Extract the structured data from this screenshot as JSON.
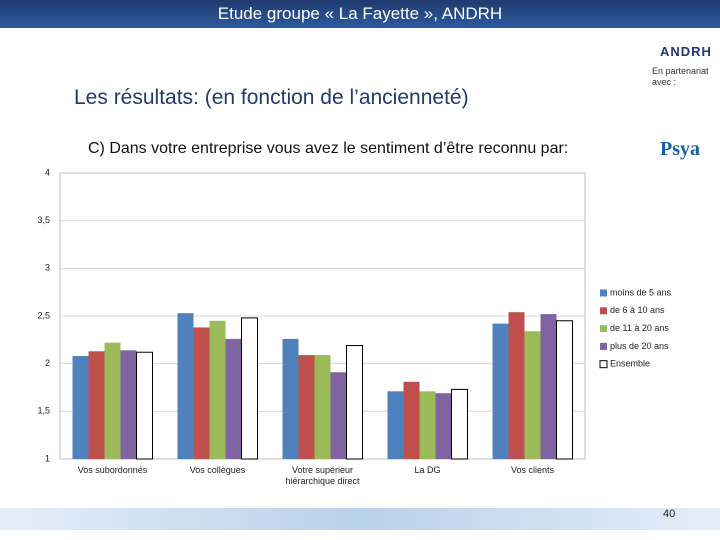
{
  "header": {
    "title": "Etude groupe « La Fayette », ANDRH"
  },
  "logos": [
    "ANDRH",
    "Psya"
  ],
  "partner_note": "En partenariat avec :",
  "heading": "Les résultats: (en fonction de l’ancienneté)",
  "page_number": "40",
  "chart_data": {
    "type": "bar",
    "title": "C) Dans votre entreprise vous avez le sentiment d’être reconnu par:",
    "categories": [
      "Vos subordonnés",
      "Vos collègues",
      "Votre supérieur hiérarchique direct",
      "La DG",
      "Vos clients"
    ],
    "series": [
      {
        "name": "moins de 5 ans",
        "color": "#4f81bd",
        "values": [
          2.08,
          2.53,
          2.26,
          1.71,
          2.42
        ]
      },
      {
        "name": "de 6 à 10 ans",
        "color": "#c0504d",
        "values": [
          2.13,
          2.38,
          2.09,
          1.81,
          2.54
        ]
      },
      {
        "name": "de 11 à 20 ans",
        "color": "#9bbb59",
        "values": [
          2.22,
          2.45,
          2.09,
          1.71,
          2.34
        ]
      },
      {
        "name": "plus de 20 ans",
        "color": "#8064a2",
        "values": [
          2.14,
          2.26,
          1.91,
          1.69,
          2.52
        ]
      },
      {
        "name": "Ensemble",
        "color": "#ffffff",
        "values": [
          2.12,
          2.48,
          2.19,
          1.73,
          2.45
        ]
      }
    ],
    "ylim": [
      1,
      4
    ],
    "yticks": [
      1,
      {
        "value": 1.5,
        "label": "1,5"
      },
      2,
      {
        "value": 2.5,
        "label": "2,5"
      },
      3,
      {
        "value": 3.5,
        "label": "3,5"
      },
      4
    ],
    "grid": true,
    "legend": "right"
  }
}
